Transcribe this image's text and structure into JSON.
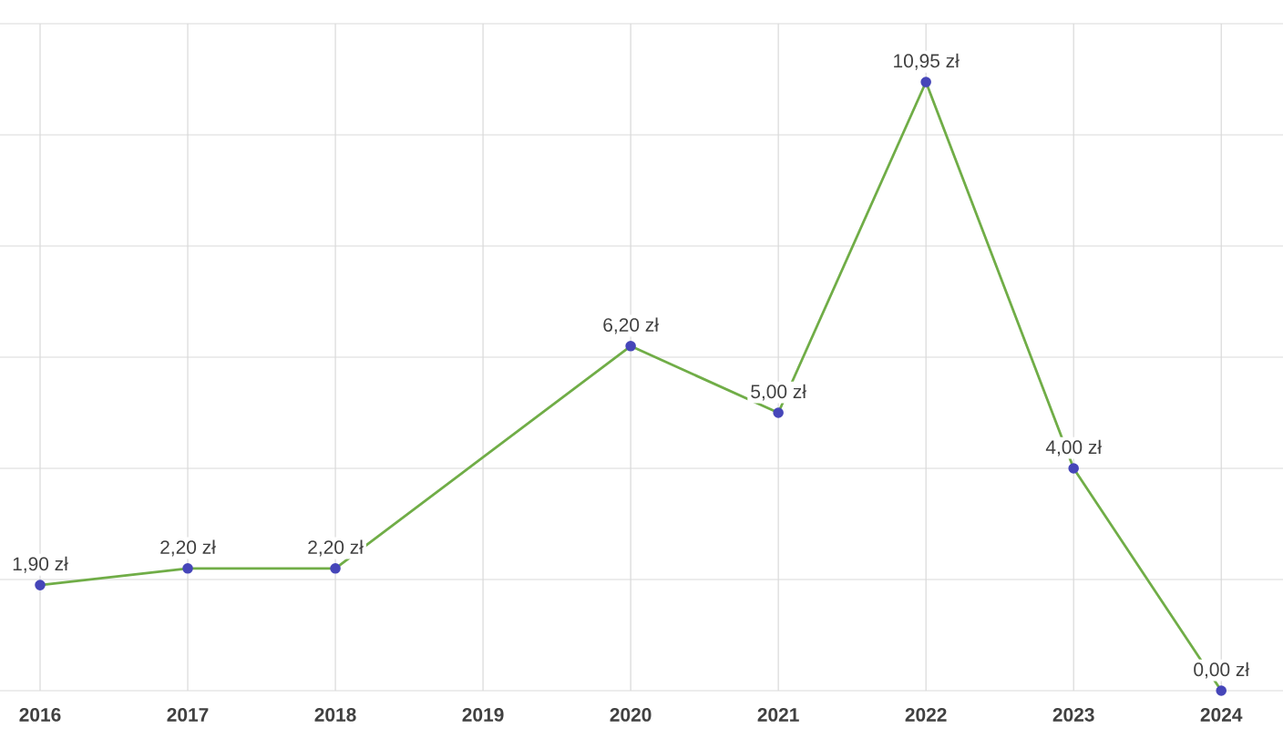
{
  "chart_data": {
    "type": "line",
    "categories": [
      "2016",
      "2017",
      "2018",
      "2019",
      "2020",
      "2021",
      "2022",
      "2023",
      "2024"
    ],
    "series": [
      {
        "color": "#70ad47",
        "values": [
          1.9,
          2.2,
          2.2,
          null,
          6.2,
          5.0,
          10.95,
          4.0,
          0.0
        ],
        "value_labels": [
          "1,90 zł",
          "2,20 zł",
          "2,20 zł",
          null,
          "6,20 zł",
          "5,00 zł",
          "10,95 zł",
          "4,00 zł",
          "0,00 zł"
        ]
      }
    ],
    "ylim": [
      0,
      12
    ],
    "yticks": [
      {
        "value": 0,
        "label": null
      },
      {
        "value": 2,
        "label": null
      },
      {
        "value": 4,
        "label": null
      },
      {
        "value": 6,
        "label": null
      },
      {
        "value": 8,
        "label": null
      },
      {
        "value": 10,
        "label": null
      },
      {
        "value": 12,
        "label": null
      }
    ],
    "tick_labels": "x",
    "grid": true,
    "marker": "circle",
    "line_style": "solid"
  }
}
